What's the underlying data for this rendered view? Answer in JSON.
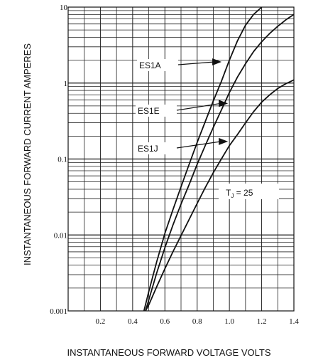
{
  "chart_data": {
    "type": "line",
    "title": "",
    "xlabel": "INSTANTANEOUS FORWARD VOLTAGE VOLTS",
    "ylabel": "INSTANTANEOUS FORWARD CURRENT AMPERES",
    "x_ticks": [
      "0.2",
      "0.4",
      "0.6",
      "0.8",
      "1.0",
      "1.2",
      "1.4"
    ],
    "y_ticks": [
      "0.001",
      "0.01",
      "0.1",
      "1",
      "10"
    ],
    "xlim": [
      0.0,
      1.4
    ],
    "ylim": [
      0.001,
      10
    ],
    "y_scale": "log",
    "grid": true,
    "condition": {
      "main": "T",
      "sub": "J",
      "rest": " = 25"
    },
    "series": [
      {
        "name": "ES1A",
        "x": [
          0.47,
          0.5,
          0.55,
          0.6,
          0.65,
          0.7,
          0.75,
          0.8,
          0.85,
          0.9,
          0.95,
          1.0,
          1.05,
          1.1,
          1.15,
          1.2,
          1.25
        ],
        "y": [
          0.001,
          0.0018,
          0.0045,
          0.0105,
          0.0215,
          0.043,
          0.085,
          0.165,
          0.31,
          0.58,
          1.05,
          2.0,
          3.6,
          5.8,
          8.0,
          10.0,
          12.5
        ]
      },
      {
        "name": "ES1E",
        "x": [
          0.48,
          0.5,
          0.55,
          0.6,
          0.65,
          0.7,
          0.75,
          0.8,
          0.85,
          0.9,
          0.95,
          1.0,
          1.05,
          1.1,
          1.15,
          1.2,
          1.25,
          1.3,
          1.35,
          1.4
        ],
        "y": [
          0.001,
          0.0014,
          0.0032,
          0.0068,
          0.0135,
          0.0255,
          0.046,
          0.085,
          0.15,
          0.26,
          0.44,
          0.75,
          1.2,
          1.8,
          2.6,
          3.5,
          4.5,
          5.6,
          6.8,
          8.0
        ]
      },
      {
        "name": "ES1J",
        "x": [
          0.48,
          0.5,
          0.55,
          0.6,
          0.65,
          0.7,
          0.75,
          0.8,
          0.85,
          0.9,
          0.95,
          1.0,
          1.05,
          1.1,
          1.15,
          1.2,
          1.25,
          1.3,
          1.35,
          1.4
        ],
        "y": [
          0.001,
          0.0012,
          0.0021,
          0.0036,
          0.006,
          0.0098,
          0.016,
          0.026,
          0.042,
          0.066,
          0.1,
          0.15,
          0.21,
          0.3,
          0.42,
          0.56,
          0.7,
          0.85,
          0.98,
          1.1
        ]
      }
    ]
  }
}
